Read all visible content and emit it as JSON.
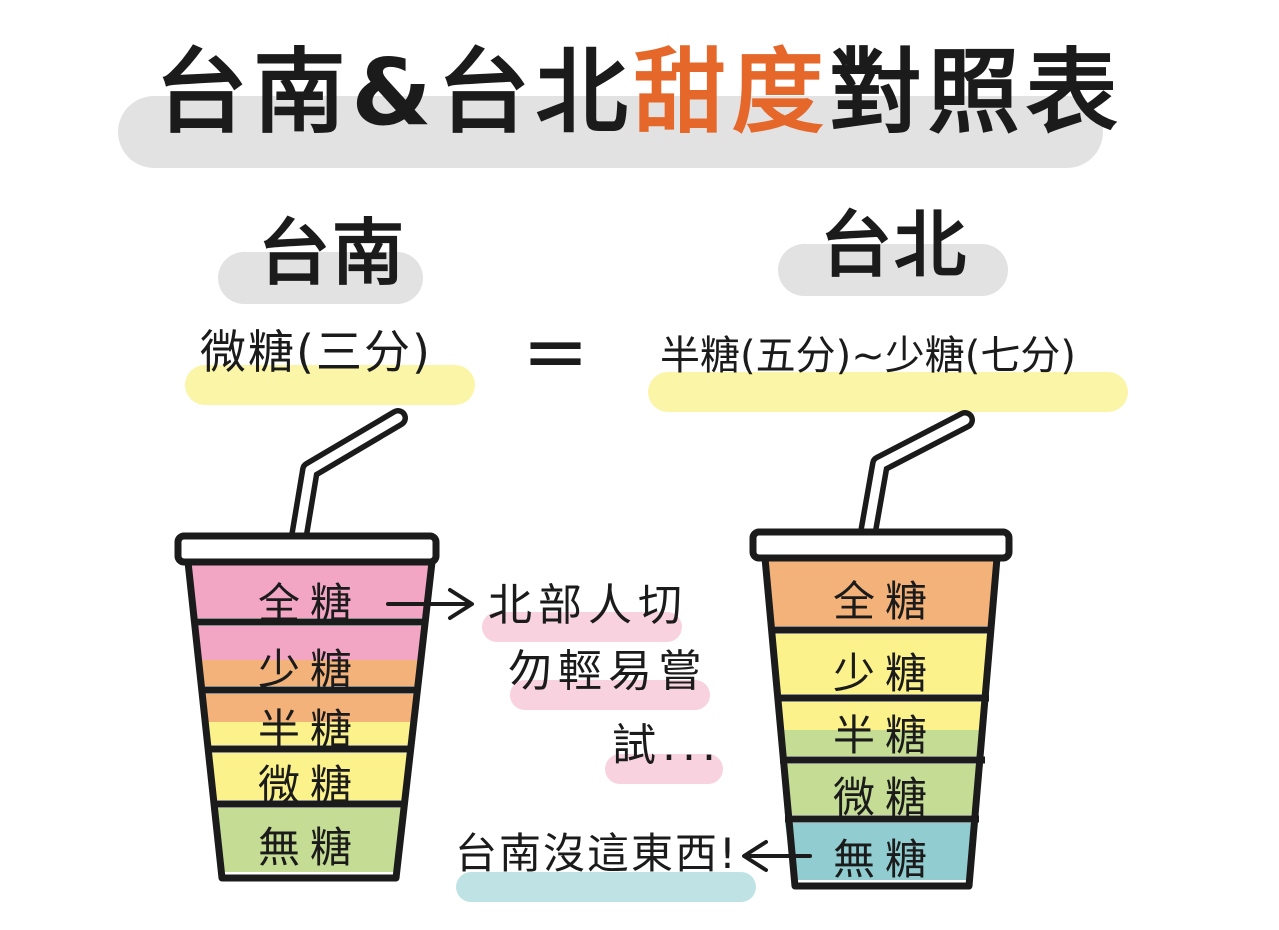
{
  "title": {
    "part1": "台南&台北",
    "accent": "甜度",
    "part2": "對照表",
    "accent_color": "#e5672a"
  },
  "left": {
    "heading": "台南",
    "equivalence": "微糖(三分)",
    "levels": [
      "全糖",
      "少糖",
      "半糖",
      "微糖",
      "無糖"
    ]
  },
  "equals_sign": "=",
  "right": {
    "heading": "台北",
    "equivalence": "半糖(五分)~少糖(七分)",
    "levels": [
      "全糖",
      "少糖",
      "半糖",
      "微糖",
      "無糖"
    ]
  },
  "notes": {
    "north_warning_lines": [
      "北部人切",
      "勿輕易嘗",
      "試..."
    ],
    "no_such_thing": "台南沒這東西!"
  },
  "colors": {
    "pink": "#f3a6c4",
    "orange": "#f3b27a",
    "yellow": "#fbf28c",
    "green": "#c4dc94",
    "teal": "#90ccd0",
    "gray_highlight": "#e2e2e2",
    "pale_yellow_highlight": "#fbf5a8",
    "pink_highlight": "#f8d2df",
    "teal_highlight": "#bfe3e5"
  }
}
